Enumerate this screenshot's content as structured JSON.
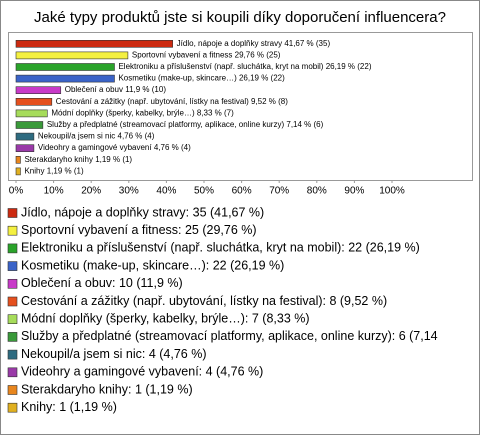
{
  "chart_data": {
    "type": "bar",
    "orientation": "horizontal",
    "title": "Jaké typy produktů jste si koupili díky doporučení influencera?",
    "categories": [
      "Jídlo, nápoje a doplňky stravy",
      "Sportovní vybavení a fitness",
      "Elektroniku a příslušenství (např. sluchátka, kryt na mobil)",
      "Kosmetiku (make-up, skincare…)",
      "Oblečení a obuv",
      "Cestování a zážitky (např. ubytování, lístky na festival)",
      "Módní doplňky (šperky, kabelky, brýle…)",
      "Služby a předplatné (streamovací platformy, aplikace, online kurzy)",
      "Nekoupil/a jsem si nic",
      "Videohry a gamingové vybavení",
      "Sterakdaryho knihy",
      "Knihy"
    ],
    "values": [
      41.67,
      29.76,
      26.19,
      26.19,
      11.9,
      9.52,
      8.33,
      7.14,
      4.76,
      4.76,
      1.19,
      1.19
    ],
    "value_labels": [
      "41,67 % (35)",
      "29,76 % (25)",
      "26,19 % (22)",
      "26,19 % (22)",
      "11,9 % (10)",
      "9,52 % (8)",
      "8,33 % (7)",
      "7,14 % (6)",
      "4,76 % (4)",
      "4,76 % (4)",
      "1,19 % (1)",
      "1,19 % (1)"
    ],
    "colors": [
      "#cc2a10",
      "#f4f040",
      "#2aa32a",
      "#3a63c8",
      "#c83ac8",
      "#e5501e",
      "#a6dc5a",
      "#3a9a3a",
      "#2e6b80",
      "#9a3aa8",
      "#e8861e",
      "#e0b020"
    ],
    "legend_labels": [
      "Jídlo, nápoje a doplňky stravy: 35 (41,67 %)",
      "Sportovní vybavení a fitness: 25 (29,76 %)",
      "Elektroniku a příslušenství (např. sluchátka, kryt na mobil): 22 (26,19 %)",
      "Kosmetiku (make-up, skincare…): 22 (26,19 %)",
      "Oblečení a obuv: 10 (11,9 %)",
      "Cestování a zážitky (např. ubytování, lístky na festival): 8 (9,52 %)",
      "Módní doplňky (šperky, kabelky, brýle…): 7 (8,33 %)",
      "Služby a předplatné (streamovací platformy, aplikace, online kurzy): 6 (7,14",
      "Nekoupil/a jsem si nic: 4 (4,76 %)",
      "Videohry a gamingové vybavení: 4 (4,76 %)",
      "Sterakdaryho knihy: 1 (1,19 %)",
      "Knihy: 1 (1,19 %)"
    ],
    "xlim": [
      0,
      100
    ],
    "xticks": [
      {
        "value": 0,
        "label": "0%"
      },
      {
        "value": 10,
        "label": "10%"
      },
      {
        "value": 20,
        "label": "20%"
      },
      {
        "value": 30,
        "label": "30%"
      },
      {
        "value": 40,
        "label": "40%"
      },
      {
        "value": 50,
        "label": "50%"
      },
      {
        "value": 60,
        "label": "60%"
      },
      {
        "value": 70,
        "label": "70%"
      },
      {
        "value": 80,
        "label": "80%"
      },
      {
        "value": 90,
        "label": "90%"
      },
      {
        "value": 100,
        "label": "100%"
      }
    ]
  }
}
